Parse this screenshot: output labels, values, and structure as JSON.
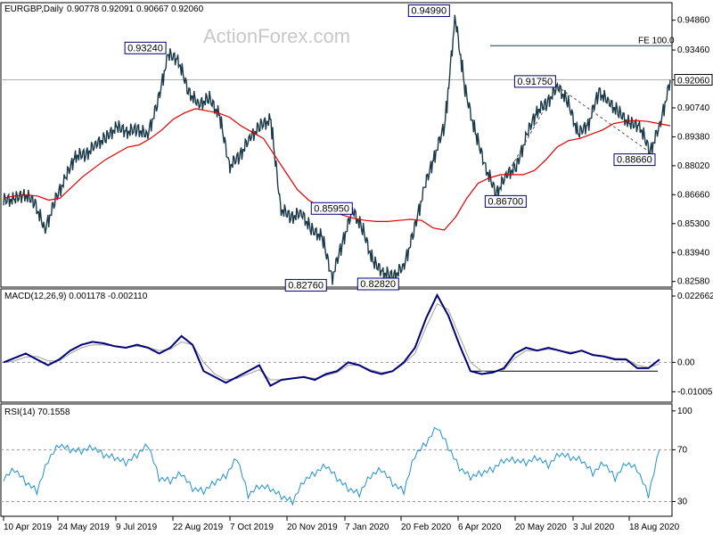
{
  "chart_data": [
    {
      "type": "line",
      "name": "price",
      "header": {
        "symbol": "EURGBP,Daily",
        "open": "0.90778",
        "high": "0.92091",
        "low": "0.90667",
        "close": "0.92060"
      },
      "watermark": "ActionForex.com",
      "ylim": [
        0.824,
        0.956
      ],
      "y_ticks": [
        "0.94860",
        "0.93460",
        "0.92060",
        "0.90740",
        "0.89380",
        "0.88020",
        "0.86660",
        "0.85300",
        "0.83940",
        "0.82580"
      ],
      "current_price_label": "0.92060",
      "current_price": 0.9206,
      "fe_label": "FE 100.0",
      "fe_level": 0.9366,
      "price_points": [
        0.864,
        0.8645,
        0.8668,
        0.863,
        0.85,
        0.864,
        0.8745,
        0.885,
        0.8855,
        0.8905,
        0.8935,
        0.8985,
        0.8962,
        0.8975,
        0.8945,
        0.91,
        0.9324,
        0.93,
        0.915,
        0.909,
        0.912,
        0.904,
        0.88,
        0.885,
        0.8935,
        0.899,
        0.902,
        0.86,
        0.856,
        0.858,
        0.85,
        0.847,
        0.8276,
        0.844,
        0.8595,
        0.85,
        0.835,
        0.83,
        0.8282,
        0.833,
        0.85,
        0.87,
        0.885,
        0.9,
        0.9499,
        0.915,
        0.895,
        0.879,
        0.867,
        0.876,
        0.88,
        0.895,
        0.906,
        0.91,
        0.9175,
        0.91,
        0.895,
        0.9,
        0.915,
        0.91,
        0.905,
        0.9,
        0.899,
        0.8866,
        0.9,
        0.9206
      ],
      "ma_points": [
        0.865,
        0.866,
        0.8665,
        0.866,
        0.864,
        0.865,
        0.87,
        0.875,
        0.879,
        0.883,
        0.886,
        0.889,
        0.89,
        0.893,
        0.897,
        0.902,
        0.905,
        0.907,
        0.906,
        0.905,
        0.903,
        0.899,
        0.896,
        0.893,
        0.885,
        0.877,
        0.869,
        0.864,
        0.861,
        0.859,
        0.857,
        0.8555,
        0.8545,
        0.854,
        0.854,
        0.8545,
        0.855,
        0.8545,
        0.851,
        0.85,
        0.856,
        0.865,
        0.872,
        0.8745,
        0.876,
        0.876,
        0.876,
        0.878,
        0.883,
        0.889,
        0.892,
        0.893,
        0.895,
        0.897,
        0.9,
        0.901,
        0.9015,
        0.901,
        0.9,
        0.899
      ],
      "annotations": [
        {
          "label": "0.93240",
          "value": 0.9324
        },
        {
          "label": "0.94990",
          "value": 0.9499
        },
        {
          "label": "0.91750",
          "value": 0.9175
        },
        {
          "label": "0.85950",
          "value": 0.8595
        },
        {
          "label": "0.86700",
          "value": 0.867
        },
        {
          "label": "0.88660",
          "value": 0.8866
        },
        {
          "label": "0.82760",
          "value": 0.8276
        },
        {
          "label": "0.82820",
          "value": 0.8282
        }
      ]
    },
    {
      "type": "line",
      "name": "macd",
      "label": "MACD(12,26,9) 0.001178 -0.002110",
      "ylim": [
        -0.013,
        0.0245
      ],
      "y_ticks": [
        "0.022662",
        "0.00",
        "-0.010052"
      ],
      "macd_points": [
        -0.0,
        0.0015,
        0.003,
        0.001,
        -0.001,
        0.001,
        0.004,
        0.006,
        0.007,
        0.0065,
        0.0055,
        0.005,
        0.006,
        0.005,
        0.003,
        0.005,
        0.009,
        0.006,
        -0.003,
        -0.005,
        -0.007,
        -0.005,
        -0.003,
        -0.001,
        -0.008,
        -0.006,
        -0.0055,
        -0.005,
        -0.006,
        -0.004,
        -0.003,
        0.0,
        -0.001,
        -0.003,
        -0.004,
        -0.003,
        0.0,
        0.005,
        0.015,
        0.023,
        0.016,
        0.006,
        -0.003,
        -0.004,
        -0.0035,
        -0.002,
        0.003,
        0.005,
        0.004,
        0.005,
        0.004,
        0.003,
        0.004,
        0.0025,
        0.002,
        0.001,
        0.001,
        -0.002,
        -0.002,
        0.001
      ],
      "signal_points": [
        0.0,
        0.0005,
        0.0018,
        0.002,
        0.0005,
        0.0005,
        0.003,
        0.005,
        0.006,
        0.006,
        0.0055,
        0.005,
        0.0055,
        0.005,
        0.004,
        0.0045,
        0.007,
        0.006,
        0.0,
        -0.004,
        -0.006,
        -0.0055,
        -0.004,
        -0.0025,
        -0.006,
        -0.006,
        -0.0055,
        -0.005,
        -0.0055,
        -0.0045,
        -0.0035,
        -0.001,
        -0.001,
        -0.0025,
        -0.0035,
        -0.003,
        -0.0005,
        0.003,
        0.012,
        0.02,
        0.018,
        0.009,
        0.0,
        -0.003,
        -0.0035,
        -0.0025,
        0.0015,
        0.004,
        0.004,
        0.0045,
        0.004,
        0.0035,
        0.0038,
        0.0028,
        0.0022,
        0.0014,
        0.0012,
        -0.001,
        -0.0018,
        -0.0005
      ],
      "support_line_value": -0.003
    },
    {
      "type": "line",
      "name": "rsi",
      "label": "RSI(14) 70.1558",
      "ylim": [
        20,
        104
      ],
      "y_ticks": [
        "100",
        "70",
        "30"
      ],
      "dashed_levels": [
        70,
        30
      ],
      "rsi_points": [
        48,
        55,
        45,
        38,
        62,
        74,
        70,
        69,
        72,
        66,
        64,
        60,
        66,
        74,
        48,
        46,
        52,
        40,
        38,
        45,
        50,
        64,
        35,
        42,
        40,
        34,
        30,
        46,
        52,
        58,
        48,
        40,
        36,
        50,
        55,
        44,
        38,
        66,
        75,
        88,
        72,
        56,
        49,
        52,
        55,
        62,
        62,
        60,
        64,
        58,
        67,
        64,
        62,
        52,
        60,
        48,
        60,
        55,
        35,
        70
      ]
    }
  ],
  "x_axis": {
    "dates": [
      "10 Apr 2019",
      "24 May 2019",
      "9 Jul 2019",
      "22 Aug 2019",
      "7 Oct 2019",
      "20 Nov 2019",
      "7 Jan 2020",
      "20 Feb 2020",
      "6 Apr 2020",
      "20 May 2020",
      "3 Jul 2020",
      "18 Aug 2020"
    ]
  },
  "colors": {
    "price": "#1a3a4a",
    "ma": "#e00000",
    "macd": "#00007a",
    "signal": "#a0a0a0",
    "rsi": "#1e90d0",
    "box_border": "#00007a"
  }
}
